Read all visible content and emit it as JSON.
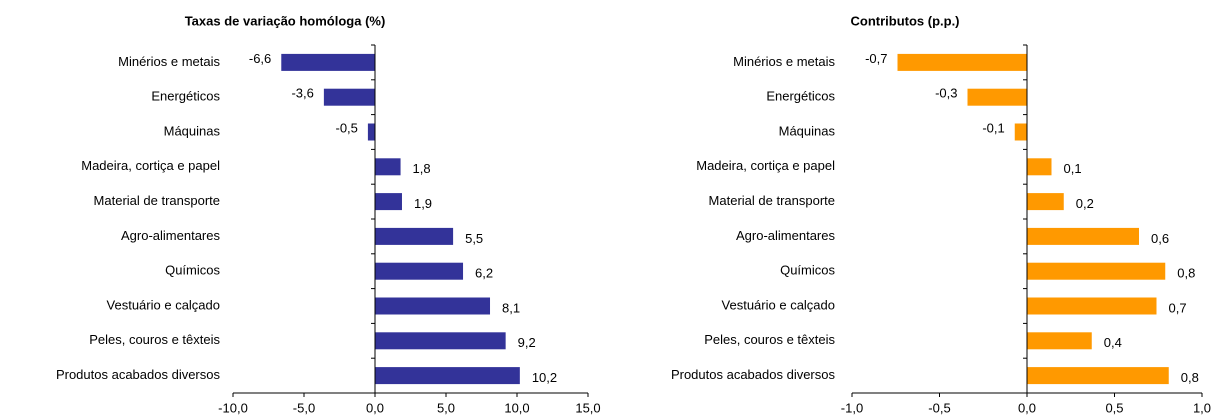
{
  "chart_data": [
    {
      "type": "bar",
      "orientation": "horizontal",
      "title": "Taxas de variação homóloga (%)",
      "categories": [
        "Minérios e metais",
        "Energéticos",
        "Máquinas",
        "Madeira, cortiça e papel",
        "Material de transporte",
        "Agro-alimentares",
        "Químicos",
        "Vestuário e calçado",
        "Peles, couros e têxteis",
        "Produtos acabados diversos"
      ],
      "values": [
        -6.6,
        -3.6,
        -0.5,
        1.8,
        1.9,
        5.5,
        6.2,
        8.1,
        9.2,
        10.2
      ],
      "value_labels": [
        "-6,6",
        "-3,6",
        "-0,5",
        "1,8",
        "1,9",
        "5,5",
        "6,2",
        "8,1",
        "9,2",
        "10,2"
      ],
      "color": "#333399",
      "xlim": [
        -10,
        15
      ],
      "xticks": [
        {
          "value": -10,
          "label": "-10,0"
        },
        {
          "value": -5,
          "label": "-5,0"
        },
        {
          "value": 0,
          "label": "0,0"
        },
        {
          "value": 5,
          "label": "5,0"
        },
        {
          "value": 10,
          "label": "10,0"
        },
        {
          "value": 15,
          "label": "15,0"
        }
      ]
    },
    {
      "type": "bar",
      "orientation": "horizontal",
      "title": "Contributos (p.p.)",
      "categories": [
        "Minérios e metais",
        "Energéticos",
        "Máquinas",
        "Madeira, cortiça e papel",
        "Material de transporte",
        "Agro-alimentares",
        "Químicos",
        "Vestuário e calçado",
        "Peles, couros e têxteis",
        "Produtos acabados diversos"
      ],
      "values": [
        -0.74,
        -0.34,
        -0.07,
        0.14,
        0.21,
        0.64,
        0.79,
        0.74,
        0.37,
        0.81
      ],
      "value_labels": [
        "-0,7",
        "-0,3",
        "-0,1",
        "0,1",
        "0,2",
        "0,6",
        "0,8",
        "0,7",
        "0,4",
        "0,8"
      ],
      "color": "#ff9900",
      "xlim": [
        -1,
        1
      ],
      "xticks": [
        {
          "value": -1,
          "label": "-1,0"
        },
        {
          "value": -0.5,
          "label": "-0,5"
        },
        {
          "value": 0,
          "label": "0,0"
        },
        {
          "value": 0.5,
          "label": "0,5"
        },
        {
          "value": 1,
          "label": "1,0"
        }
      ]
    }
  ]
}
